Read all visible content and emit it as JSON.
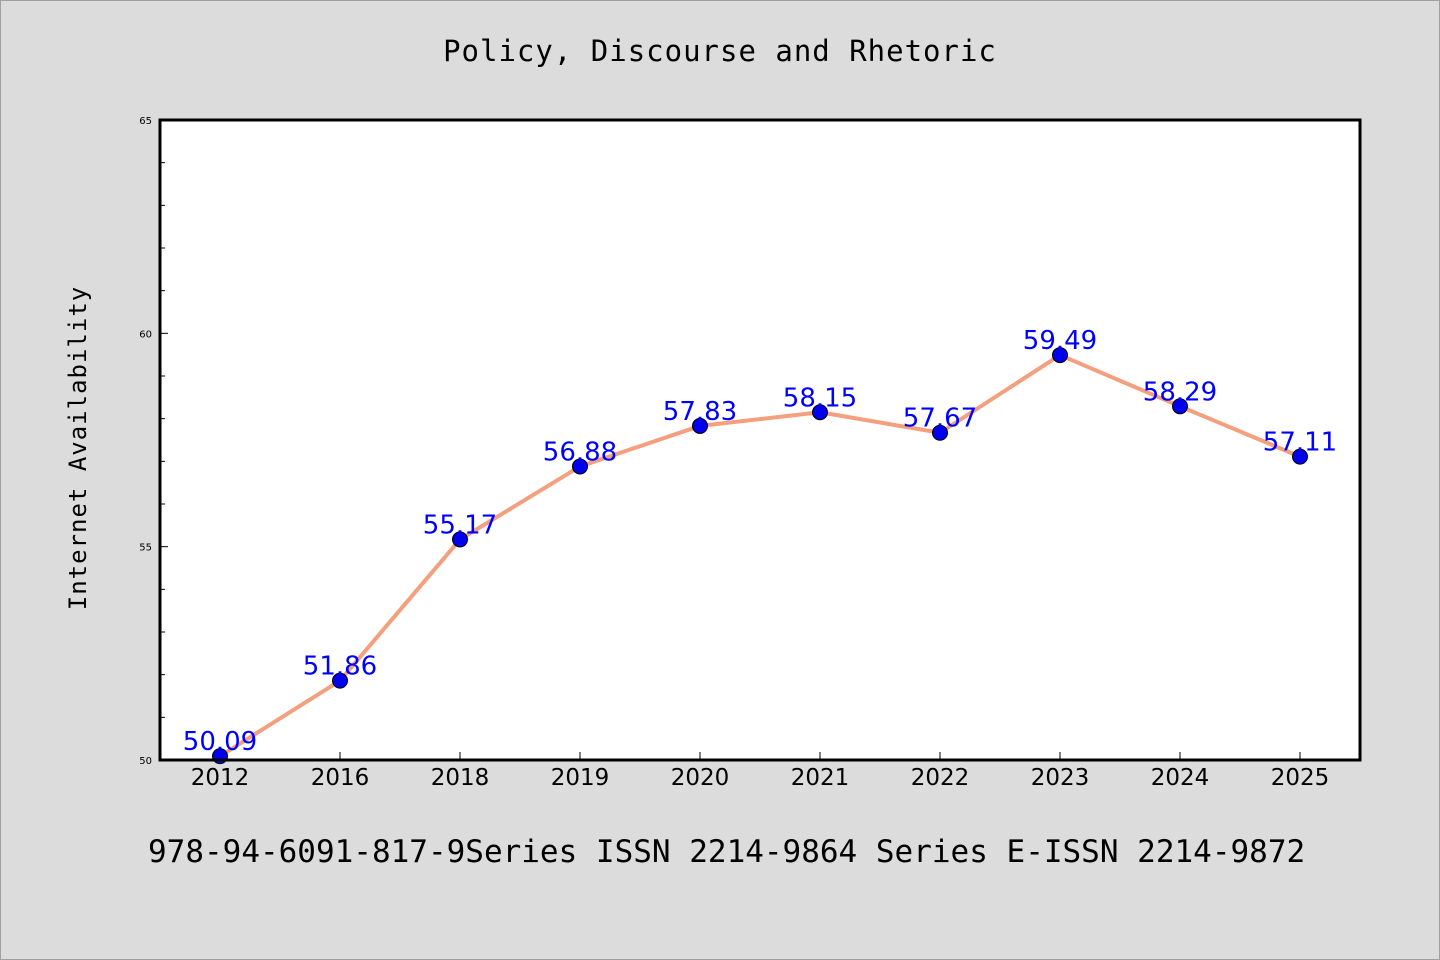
{
  "colors": {
    "background": "#dcdcdc",
    "plot_background": "#ffffff",
    "line": "#f4a07e",
    "marker": "#0000ee",
    "label": "#0000ff"
  },
  "caption": "978-94-6091-817-9Series ISSN 2214-9864 Series E-ISSN 2214-9872",
  "chart_data": {
    "type": "line",
    "title": "Policy, Discourse and Rhetoric",
    "xlabel": "",
    "ylabel": "Internet Availability",
    "categories": [
      "2012",
      "2016",
      "2018",
      "2019",
      "2020",
      "2021",
      "2022",
      "2023",
      "2024",
      "2025"
    ],
    "values": [
      50.09,
      51.86,
      55.17,
      56.88,
      57.83,
      58.15,
      57.67,
      59.49,
      58.29,
      57.11
    ],
    "value_labels": [
      "50.09",
      "51.86",
      "55.17",
      "56.88",
      "57.83",
      "58.15",
      "57.67",
      "59.49",
      "58.29",
      "57.11"
    ],
    "ylim": [
      50,
      65
    ],
    "yticks": [
      50,
      55,
      60,
      65
    ],
    "ytick_labels": [
      "50",
      "55",
      "60",
      "65"
    ],
    "y_minor_step": 1,
    "grid": false,
    "legend": "none"
  }
}
